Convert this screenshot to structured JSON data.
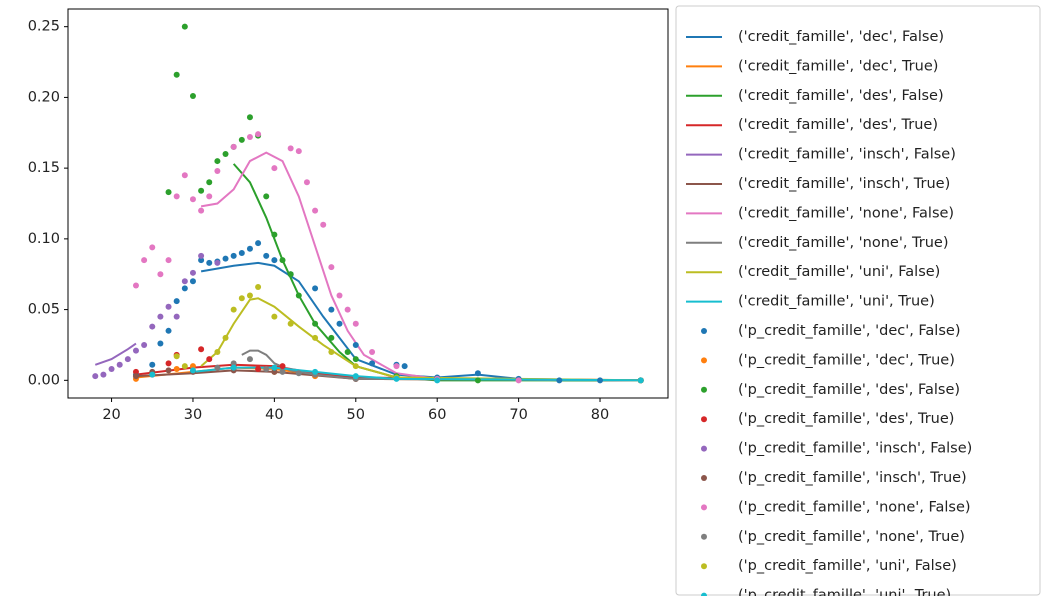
{
  "chart_data": {
    "type": "line",
    "xlim": [
      14.65,
      88.35
    ],
    "ylim": [
      -0.0125,
      0.2625
    ],
    "xticks": [
      20,
      30,
      40,
      50,
      60,
      70,
      80
    ],
    "yticks": [
      {
        "value": 0,
        "label": "0.00"
      },
      0.05,
      {
        "value": 0.1,
        "label": "0.10"
      },
      0.15,
      {
        "value": 0.2,
        "label": "0.20"
      },
      0.25
    ],
    "grid": false,
    "legend": "outside right",
    "series": [
      {
        "name": "('credit_famille', 'dec', False)",
        "color": "#1f77b4",
        "type": "line",
        "x": [
          31,
          35,
          38,
          40,
          43,
          46,
          50,
          55,
          60,
          65,
          70,
          75,
          85
        ],
        "values": [
          0.077,
          0.081,
          0.083,
          0.081,
          0.07,
          0.045,
          0.015,
          0.004,
          0.002,
          0.004,
          0.001,
          0,
          0
        ]
      },
      {
        "name": "('credit_famille', 'dec', True)",
        "color": "#ff7f0e",
        "type": "line",
        "x": [
          23,
          30,
          35,
          40,
          45,
          50,
          85
        ],
        "values": [
          0.002,
          0.006,
          0.009,
          0.008,
          0.004,
          0.001,
          0
        ]
      },
      {
        "name": "('credit_famille', 'des', False)",
        "color": "#2ca02c",
        "type": "line",
        "x": [
          35,
          37,
          39,
          41,
          43,
          45,
          48,
          50,
          55,
          60,
          85
        ],
        "values": [
          0.153,
          0.14,
          0.115,
          0.085,
          0.06,
          0.04,
          0.02,
          0.01,
          0.002,
          0,
          0
        ]
      },
      {
        "name": "('credit_famille', 'des', True)",
        "color": "#d62728",
        "type": "line",
        "x": [
          23,
          30,
          35,
          40,
          45,
          50,
          85
        ],
        "values": [
          0.004,
          0.009,
          0.011,
          0.01,
          0.005,
          0.002,
          0
        ]
      },
      {
        "name": "('credit_famille', 'insch', False)",
        "color": "#9467bd",
        "type": "line",
        "x": [
          18,
          20,
          22,
          23
        ],
        "values": [
          0.011,
          0.015,
          0.022,
          0.026
        ]
      },
      {
        "name": "('credit_famille', 'insch', True)",
        "color": "#8c564b",
        "type": "line",
        "x": [
          23,
          30,
          35,
          40,
          50,
          85
        ],
        "values": [
          0.003,
          0.005,
          0.007,
          0.006,
          0.001,
          0
        ]
      },
      {
        "name": "('credit_famille', 'none', False)",
        "color": "#e377c2",
        "type": "line",
        "x": [
          31,
          33,
          35,
          37,
          39,
          41,
          43,
          45,
          47,
          49,
          51,
          55,
          60,
          85
        ],
        "values": [
          0.123,
          0.125,
          0.135,
          0.155,
          0.161,
          0.155,
          0.13,
          0.095,
          0.06,
          0.035,
          0.018,
          0.005,
          0.001,
          0
        ]
      },
      {
        "name": "('credit_famille', 'none', True)",
        "color": "#7f7f7f",
        "type": "line",
        "x": [
          36,
          37,
          38,
          39,
          40,
          42,
          45,
          50,
          85
        ],
        "values": [
          0.018,
          0.021,
          0.021,
          0.018,
          0.012,
          0.007,
          0.004,
          0.001,
          0
        ]
      },
      {
        "name": "('credit_famille', 'uni', False)",
        "color": "#bcbd22",
        "type": "line",
        "x": [
          31,
          33,
          35,
          37,
          38,
          40,
          43,
          46,
          50,
          55,
          85
        ],
        "values": [
          0.01,
          0.02,
          0.04,
          0.057,
          0.058,
          0.052,
          0.038,
          0.025,
          0.01,
          0.002,
          0
        ]
      },
      {
        "name": "('credit_famille', 'uni', True)",
        "color": "#17becf",
        "type": "line",
        "x": [
          30,
          35,
          40,
          45,
          50,
          55,
          85
        ],
        "values": [
          0.006,
          0.009,
          0.009,
          0.006,
          0.003,
          0.001,
          0
        ]
      },
      {
        "name": "('p_credit_famille', 'dec', False)",
        "color": "#1f77b4",
        "type": "scatter",
        "x": [
          23,
          25,
          26,
          27,
          28,
          29,
          30,
          31,
          32,
          33,
          34,
          35,
          36,
          37,
          38,
          39,
          40,
          42,
          45,
          47,
          48,
          50,
          52,
          55,
          56,
          60,
          65,
          70,
          75,
          80,
          85
        ],
        "values": [
          0.004,
          0.011,
          0.026,
          0.035,
          0.056,
          0.065,
          0.07,
          0.085,
          0.083,
          0.084,
          0.086,
          0.088,
          0.09,
          0.093,
          0.097,
          0.088,
          0.085,
          0.075,
          0.065,
          0.05,
          0.04,
          0.025,
          0.012,
          0.011,
          0.01,
          0.002,
          0.005,
          0.001,
          0,
          0,
          0
        ]
      },
      {
        "name": "('p_credit_famille', 'dec', True)",
        "color": "#ff7f0e",
        "type": "scatter",
        "x": [
          23,
          25,
          28,
          30,
          35,
          40,
          45,
          50,
          85
        ],
        "values": [
          0.001,
          0.005,
          0.008,
          0.01,
          0.009,
          0.006,
          0.003,
          0.001,
          0
        ]
      },
      {
        "name": "('p_credit_famille', 'des', False)",
        "color": "#2ca02c",
        "type": "scatter",
        "x": [
          27,
          28,
          29,
          30,
          31,
          32,
          33,
          34,
          35,
          36,
          37,
          38,
          39,
          40,
          41,
          42,
          43,
          45,
          47,
          49,
          50,
          55,
          60,
          65,
          85
        ],
        "values": [
          0.133,
          0.216,
          0.25,
          0.201,
          0.134,
          0.14,
          0.155,
          0.16,
          0.165,
          0.17,
          0.186,
          0.173,
          0.13,
          0.103,
          0.085,
          0.075,
          0.06,
          0.04,
          0.03,
          0.02,
          0.015,
          0.003,
          0.001,
          0,
          0
        ]
      },
      {
        "name": "('p_credit_famille', 'des', True)",
        "color": "#d62728",
        "type": "scatter",
        "x": [
          23,
          25,
          27,
          28,
          31,
          32,
          35,
          38,
          41,
          45,
          50,
          85
        ],
        "values": [
          0.006,
          0.004,
          0.012,
          0.018,
          0.022,
          0.015,
          0.01,
          0.008,
          0.01,
          0.004,
          0.001,
          0
        ]
      },
      {
        "name": "('p_credit_famille', 'insch', False)",
        "color": "#9467bd",
        "type": "scatter",
        "x": [
          18,
          19,
          20,
          21,
          22,
          23,
          24,
          25,
          26,
          27,
          28,
          29,
          30,
          31,
          33
        ],
        "values": [
          0.003,
          0.004,
          0.008,
          0.011,
          0.015,
          0.021,
          0.025,
          0.038,
          0.045,
          0.052,
          0.045,
          0.07,
          0.076,
          0.088,
          0.083
        ]
      },
      {
        "name": "('p_credit_famille', 'insch', True)",
        "color": "#8c564b",
        "type": "scatter",
        "x": [
          23,
          25,
          27,
          30,
          35,
          40,
          45,
          50,
          85
        ],
        "values": [
          0.003,
          0.006,
          0.007,
          0.006,
          0.007,
          0.006,
          0.004,
          0.001,
          0
        ]
      },
      {
        "name": "('p_credit_famille', 'none', False)",
        "color": "#e377c2",
        "type": "scatter",
        "x": [
          23,
          24,
          25,
          26,
          27,
          28,
          29,
          30,
          31,
          32,
          33,
          35,
          37,
          38,
          40,
          42,
          43,
          44,
          45,
          46,
          47,
          48,
          49,
          50,
          52,
          55,
          60,
          70,
          85
        ],
        "values": [
          0.067,
          0.085,
          0.094,
          0.075,
          0.085,
          0.13,
          0.145,
          0.128,
          0.12,
          0.13,
          0.148,
          0.165,
          0.172,
          0.174,
          0.15,
          0.164,
          0.162,
          0.14,
          0.12,
          0.11,
          0.08,
          0.06,
          0.05,
          0.04,
          0.02,
          0.01,
          0.001,
          0,
          0
        ]
      },
      {
        "name": "('p_credit_famille', 'none', True)",
        "color": "#7f7f7f",
        "type": "scatter",
        "x": [
          33,
          35,
          37,
          39,
          41,
          43,
          45,
          50,
          85
        ],
        "values": [
          0.009,
          0.012,
          0.015,
          0.008,
          0.006,
          0.005,
          0.004,
          0.001,
          0
        ]
      },
      {
        "name": "('p_credit_famille', 'uni', False)",
        "color": "#bcbd22",
        "type": "scatter",
        "x": [
          28,
          29,
          33,
          34,
          35,
          36,
          37,
          38,
          40,
          42,
          45,
          47,
          50,
          55,
          85
        ],
        "values": [
          0.017,
          0.01,
          0.02,
          0.03,
          0.05,
          0.058,
          0.06,
          0.066,
          0.045,
          0.04,
          0.03,
          0.02,
          0.01,
          0.002,
          0
        ]
      },
      {
        "name": "('p_credit_famille', 'uni', True)",
        "color": "#17becf",
        "type": "scatter",
        "x": [
          25,
          30,
          35,
          40,
          45,
          50,
          55,
          60,
          85
        ],
        "values": [
          0.004,
          0.007,
          0.009,
          0.009,
          0.006,
          0.003,
          0.001,
          0,
          0
        ]
      }
    ]
  }
}
